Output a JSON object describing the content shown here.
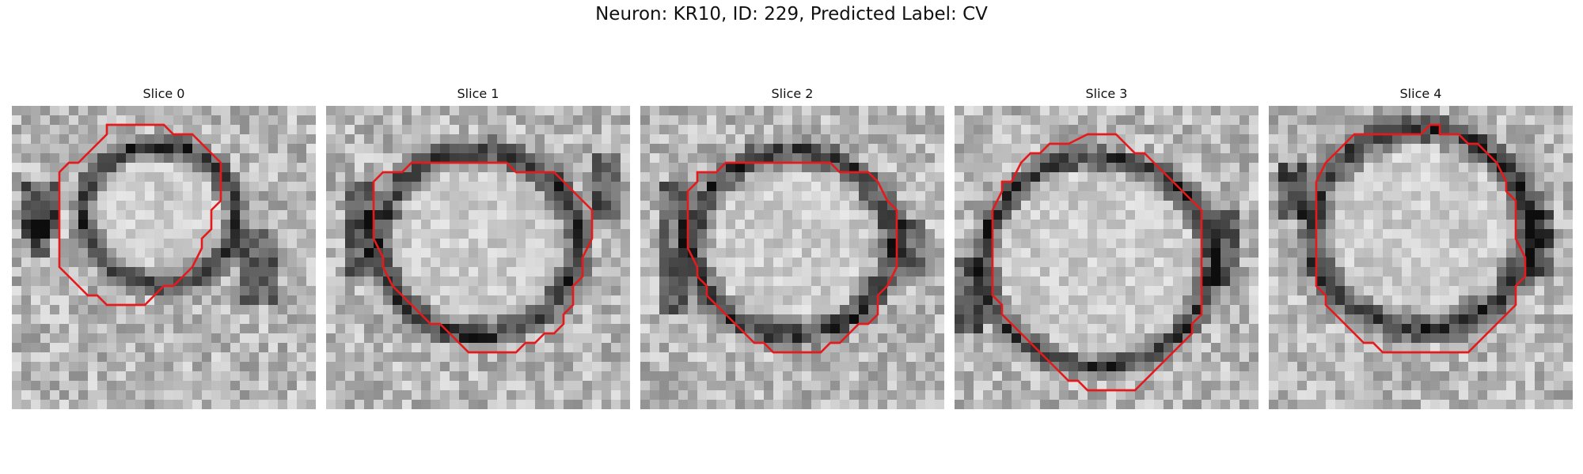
{
  "figure": {
    "title": "Neuron: KR10, ID: 229, Predicted Label: CV"
  },
  "panels": [
    {
      "title": "Slice 0"
    },
    {
      "title": "Slice 1"
    },
    {
      "title": "Slice 2"
    },
    {
      "title": "Slice 3"
    },
    {
      "title": "Slice 4"
    }
  ],
  "colors": {
    "contour": "#e41a1c",
    "background": "#ffffff"
  }
}
